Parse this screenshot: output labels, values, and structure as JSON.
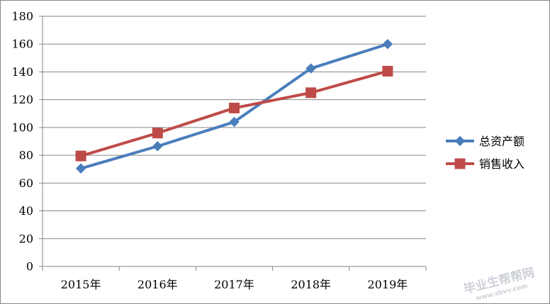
{
  "chart_data": {
    "type": "line",
    "categories": [
      "2015年",
      "2016年",
      "2017年",
      "2018年",
      "2019年"
    ],
    "ylim": [
      0,
      180
    ],
    "yticks": [
      0,
      20,
      40,
      60,
      80,
      100,
      120,
      140,
      160,
      180
    ],
    "grid": true,
    "legend_position": "right",
    "series": [
      {
        "name": "总资产额",
        "values": [
          70.5,
          86.5,
          104,
          142.5,
          160
        ],
        "color": "#4a7ebb",
        "marker": "diamond"
      },
      {
        "name": "销售收入",
        "values": [
          79.5,
          96,
          114,
          125,
          140.5
        ],
        "color": "#be4b48",
        "marker": "square"
      }
    ]
  },
  "watermark": {
    "title": "毕业生帮帮网",
    "url": "www.sbvv.com"
  }
}
